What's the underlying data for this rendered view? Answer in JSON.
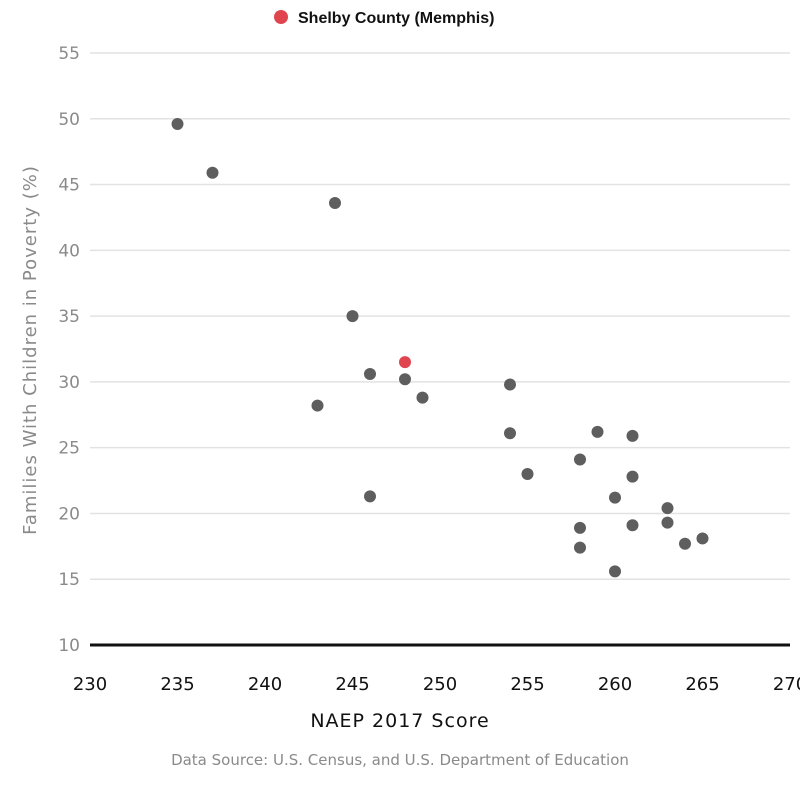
{
  "chart_data": {
    "type": "scatter",
    "legend": {
      "label": "Shelby County (Memphis)",
      "color": "#e0454f",
      "placement": "top-center"
    },
    "xlabel": "NAEP 2017 Score",
    "ylabel": "Families With Children in Poverty (%)",
    "xlim": [
      230,
      270
    ],
    "ylim": [
      10,
      55
    ],
    "xticks": [
      230,
      235,
      240,
      245,
      250,
      255,
      260,
      265,
      270
    ],
    "yticks": [
      10,
      15,
      20,
      25,
      30,
      35,
      40,
      45,
      50,
      55
    ],
    "point_color": "#5e5e5e",
    "points": [
      {
        "x": 235,
        "y": 49.6
      },
      {
        "x": 237,
        "y": 45.9
      },
      {
        "x": 243,
        "y": 28.2
      },
      {
        "x": 244,
        "y": 43.6
      },
      {
        "x": 245,
        "y": 35.0
      },
      {
        "x": 246,
        "y": 30.6
      },
      {
        "x": 246,
        "y": 21.3
      },
      {
        "x": 248,
        "y": 30.2
      },
      {
        "x": 249,
        "y": 28.8
      },
      {
        "x": 254,
        "y": 29.8
      },
      {
        "x": 254,
        "y": 26.1
      },
      {
        "x": 255,
        "y": 23.0
      },
      {
        "x": 258,
        "y": 24.1
      },
      {
        "x": 258,
        "y": 18.9
      },
      {
        "x": 258,
        "y": 17.4
      },
      {
        "x": 259,
        "y": 26.2
      },
      {
        "x": 260,
        "y": 21.2
      },
      {
        "x": 260,
        "y": 15.6
      },
      {
        "x": 261,
        "y": 25.9
      },
      {
        "x": 261,
        "y": 22.8
      },
      {
        "x": 261,
        "y": 19.1
      },
      {
        "x": 263,
        "y": 20.4
      },
      {
        "x": 263,
        "y": 19.3
      },
      {
        "x": 264,
        "y": 17.7
      },
      {
        "x": 265,
        "y": 18.1
      }
    ],
    "highlight": [
      {
        "name": "Shelby County (Memphis)",
        "x": 248,
        "y": 31.5
      }
    ],
    "grid": true
  },
  "source": "Data Source: U.S. Census, and U.S. Department of Education"
}
